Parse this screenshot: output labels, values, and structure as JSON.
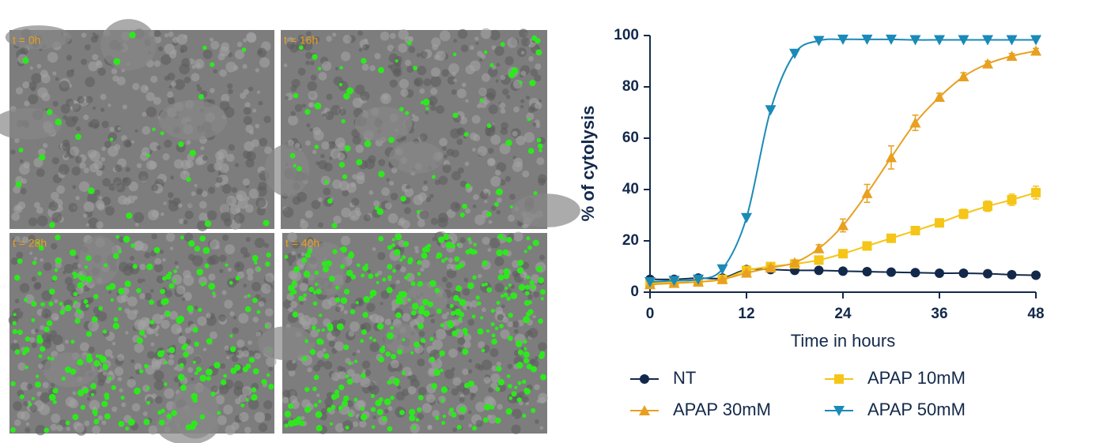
{
  "panels": [
    "t = 0h",
    "t = 16h",
    "t = 28h",
    "t = 40h"
  ],
  "chart_data": {
    "type": "line",
    "ylabel": "% of cytolysis",
    "xlabel": "Time in hours",
    "x": [
      0,
      3,
      6,
      9,
      12,
      15,
      18,
      21,
      24,
      27,
      30,
      33,
      36,
      39,
      42,
      45,
      48
    ],
    "xlim": [
      0,
      48
    ],
    "xticks": [
      0,
      12,
      24,
      36,
      48
    ],
    "ylim": [
      0,
      100
    ],
    "yticks": [
      0,
      20,
      40,
      60,
      80,
      100
    ],
    "series": [
      {
        "name": "NT",
        "color": "#13294b",
        "marker": "circle",
        "values": [
          5,
          5,
          5.5,
          5.5,
          8.8,
          8.8,
          8.5,
          8.5,
          8.2,
          8,
          7.8,
          7.6,
          7.4,
          7.4,
          7.2,
          6.8,
          6.6
        ]
      },
      {
        "name": "APAP 10mM",
        "color": "#f5c518",
        "marker": "square",
        "values": [
          3.5,
          3.8,
          4,
          5,
          8.5,
          10,
          11,
          12.5,
          15,
          18,
          21,
          24,
          27,
          30.5,
          33.5,
          36,
          38.8
        ],
        "errors": [
          0,
          0,
          0,
          0,
          0.5,
          0.5,
          0.8,
          1,
          1,
          1.2,
          1.5,
          1.5,
          1.5,
          1.8,
          2,
          2.2,
          2.5
        ]
      },
      {
        "name": "APAP 30mM",
        "color": "#e8a020",
        "marker": "triangle-up",
        "values": [
          3,
          3.5,
          4,
          5,
          7.5,
          9.5,
          11.5,
          17,
          26,
          38.5,
          52.5,
          66,
          76,
          84,
          89,
          92,
          94
        ],
        "errors": [
          0,
          0,
          0,
          0,
          0.5,
          0.8,
          1,
          1.5,
          2.5,
          3.5,
          4.5,
          3,
          1.5,
          1.5,
          1,
          1,
          1
        ]
      },
      {
        "name": "APAP 50mM",
        "color": "#1a8ab8",
        "marker": "triangle-down",
        "values": [
          4,
          4.5,
          5,
          9,
          29,
          71,
          93,
          98,
          98.5,
          98.5,
          98.5,
          98.3,
          98.3,
          98.3,
          98.3,
          98.3,
          98.3
        ]
      }
    ]
  }
}
